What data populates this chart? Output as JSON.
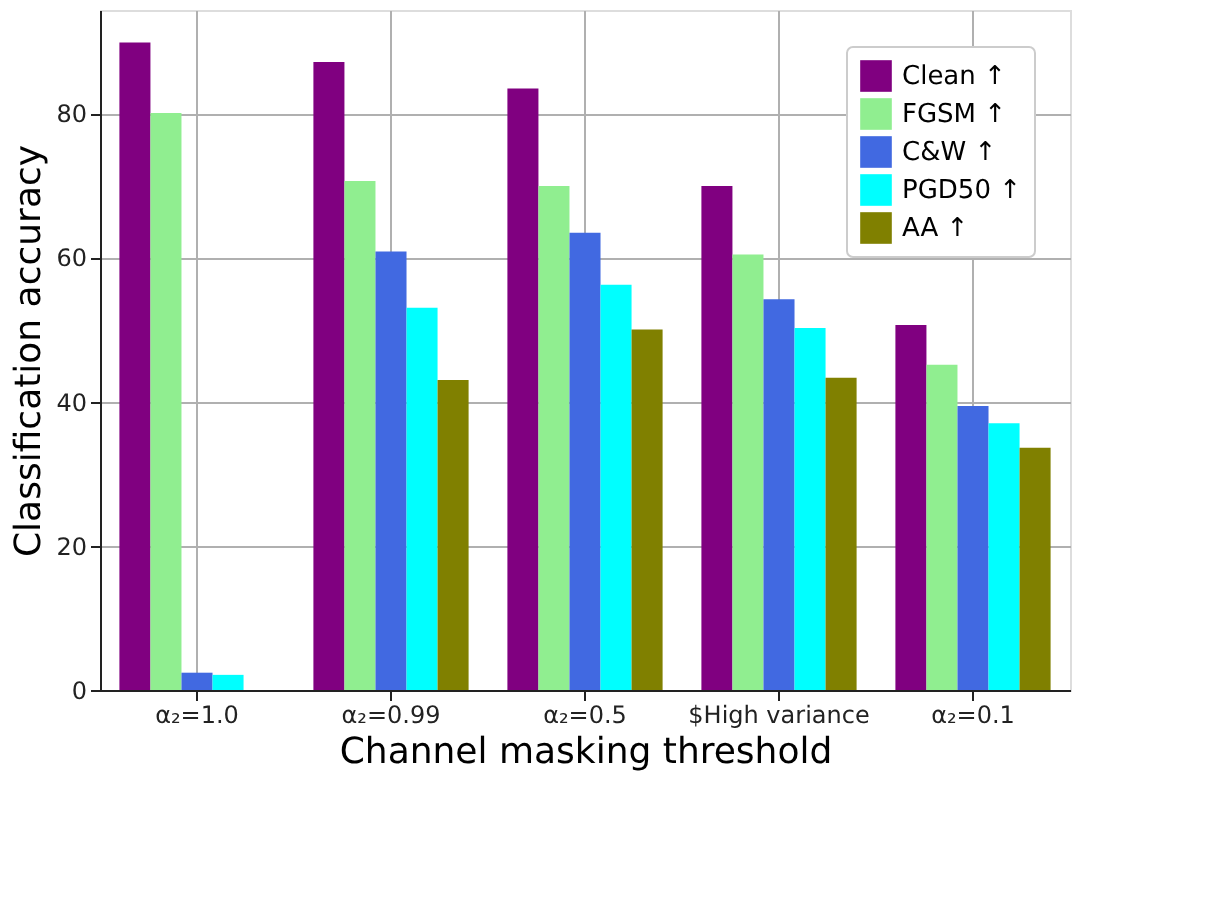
{
  "chart_data": {
    "type": "bar",
    "xlabel": "Channel masking threshold",
    "ylabel": "Classification accuracy",
    "categories": [
      "α₂=1.0",
      "α₂=0.99",
      "α₂=0.5",
      "$High variance",
      "α₂=0.1"
    ],
    "series": [
      {
        "name": "Clean ↑",
        "color": "#800080",
        "values": [
          89.8,
          87.1,
          83.4,
          69.9,
          50.6
        ]
      },
      {
        "name": "FGSM ↑",
        "color": "#90ee90",
        "values": [
          80.0,
          70.6,
          69.9,
          60.4,
          45.1
        ]
      },
      {
        "name": "C&W ↑",
        "color": "#4169e1",
        "values": [
          2.4,
          60.8,
          63.4,
          54.2,
          39.4
        ]
      },
      {
        "name": "PGD50 ↑",
        "color": "#00ffff",
        "values": [
          2.1,
          53.0,
          56.2,
          50.2,
          37.0
        ]
      },
      {
        "name": "AA ↑",
        "color": "#808000",
        "values": [
          null,
          43.0,
          50.0,
          43.3,
          33.6
        ]
      }
    ],
    "ylim": [
      0,
      94.3
    ],
    "yticks": [
      0,
      20,
      40,
      60,
      80
    ],
    "grid": true,
    "legend": "top right"
  }
}
